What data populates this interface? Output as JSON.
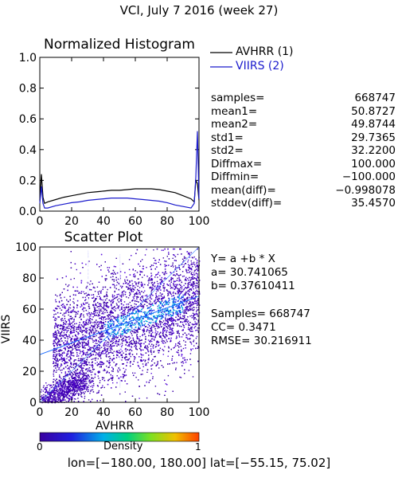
{
  "title": "VCI,  July 7 2016 (week 27)",
  "colors": {
    "avhrr": "#000000",
    "viirs": "#1a1acc"
  },
  "chart_data": [
    {
      "type": "line",
      "title": "Normalized Histogram",
      "xlim": [
        0,
        100
      ],
      "ylim": [
        0,
        1.0
      ],
      "x_ticks": [
        0,
        20,
        40,
        60,
        80,
        100
      ],
      "y_ticks": [
        "0.0",
        "0.2",
        "0.4",
        "0.6",
        "0.8",
        "1.0"
      ],
      "legend": [
        "AVHRR (1)",
        "VIIRS (2)"
      ],
      "legend_position": "right",
      "x": [
        0,
        1,
        2,
        3,
        5,
        10,
        15,
        20,
        25,
        30,
        35,
        40,
        45,
        50,
        55,
        60,
        65,
        70,
        75,
        80,
        85,
        90,
        95,
        97,
        98,
        99,
        100
      ],
      "series": [
        {
          "name": "AVHRR (1)",
          "values": [
            0.07,
            0.24,
            0.09,
            0.05,
            0.06,
            0.075,
            0.09,
            0.1,
            0.11,
            0.12,
            0.125,
            0.13,
            0.135,
            0.135,
            0.14,
            0.145,
            0.145,
            0.145,
            0.14,
            0.13,
            0.12,
            0.1,
            0.08,
            0.06,
            0.2,
            0.18,
            0.07
          ]
        },
        {
          "name": "VIIRS (2)",
          "values": [
            0.05,
            0.16,
            0.05,
            0.02,
            0.02,
            0.035,
            0.045,
            0.055,
            0.06,
            0.07,
            0.075,
            0.08,
            0.085,
            0.085,
            0.085,
            0.08,
            0.075,
            0.07,
            0.065,
            0.055,
            0.04,
            0.03,
            0.02,
            0.05,
            0.22,
            0.52,
            0.08
          ]
        }
      ],
      "stats": [
        {
          "label": "samples=",
          "value": "668747"
        },
        {
          "label": "mean1=",
          "value": "50.8727"
        },
        {
          "label": "mean2=",
          "value": "49.8744"
        },
        {
          "label": "std1=",
          "value": "29.7365"
        },
        {
          "label": "std2=",
          "value": "32.2200"
        },
        {
          "label": "Diffmax=",
          "value": "100.000"
        },
        {
          "label": "Diffmin=",
          "value": "−100.000"
        },
        {
          "label": "mean(diff)=",
          "value": "−0.998078"
        },
        {
          "label": "stddev(diff)=",
          "value": "35.4570"
        }
      ]
    },
    {
      "type": "scatter",
      "title": "Scatter Plot",
      "xlabel": "AVHRR",
      "ylabel": "VIIRS",
      "xlim": [
        0,
        100
      ],
      "ylim": [
        0,
        100
      ],
      "x_ticks": [
        0,
        20,
        40,
        60,
        80,
        100
      ],
      "y_ticks": [
        0,
        20,
        40,
        60,
        80,
        100
      ],
      "fit": {
        "equation": "Y= a +b * X",
        "a": "a= 30.741065",
        "b": "b= 0.37610411",
        "intercept": 30.741065,
        "slope": 0.37610411
      },
      "metrics": {
        "samples": "Samples= 668747",
        "cc": "CC=  0.3471",
        "rmse": "RMSE= 30.216911"
      },
      "colorbar": {
        "label": "Density",
        "min_label": "0",
        "max_label": "1"
      }
    }
  ],
  "footer": "lon=[−180.00, 180.00] lat=[−55.15, 75.02]"
}
